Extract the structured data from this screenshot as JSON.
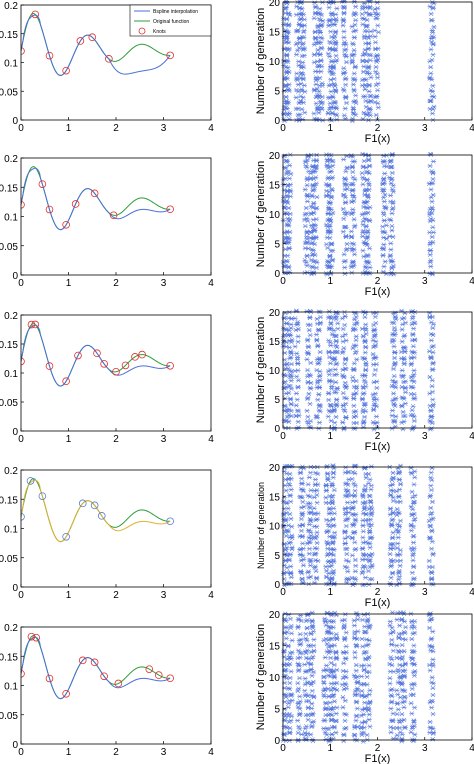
{
  "legend": {
    "entries": [
      {
        "label": "Bspline interpolation",
        "color": "#4a6fd8",
        "kind": "line"
      },
      {
        "label": "Original function",
        "color": "#2e9e3a",
        "kind": "line"
      },
      {
        "label": "Knots",
        "color": "#e03030",
        "kind": "circle"
      }
    ]
  },
  "colors": {
    "bspline": "#4a6fd8",
    "original": "#2e9e3a",
    "knot_red": "#e03030",
    "knot_blue": "#5a7fd0",
    "bspline_row4": "#e0b030",
    "generation_marker": "#5577dd"
  },
  "chart_data": [
    {
      "type": "line",
      "panel": "interp-1",
      "xlim": [
        0,
        4
      ],
      "ylim": [
        0,
        0.2
      ],
      "xticks": [
        "0",
        "1",
        "2",
        "3",
        "4"
      ],
      "yticks": [
        "0",
        "0.05",
        "0.1",
        "0.15",
        "0.2"
      ],
      "knots_x": [
        0,
        0.3,
        0.6,
        0.95,
        1.25,
        1.5,
        1.85,
        3.14
      ],
      "fit_tail_y": 0.103,
      "legend": true
    },
    {
      "type": "scatter",
      "panel": "gen-1",
      "xlabel": "F1(x)",
      "ylabel": "Number of generation",
      "xlim": [
        0,
        4
      ],
      "ylim": [
        0,
        20
      ],
      "xticks": [
        "0",
        "1",
        "2",
        "3",
        "4"
      ],
      "yticks": [
        "0",
        "5",
        "10",
        "15",
        "20"
      ],
      "columns_x": [
        0.05,
        0.1,
        0.32,
        0.42,
        0.7,
        0.8,
        1.0,
        1.1,
        1.3,
        1.5,
        1.72,
        1.82,
        1.98,
        3.15
      ]
    },
    {
      "type": "line",
      "panel": "interp-2",
      "xlim": [
        0,
        4
      ],
      "ylim": [
        0,
        0.2
      ],
      "xticks": [
        "0",
        "1",
        "2",
        "3",
        "4"
      ],
      "yticks": [
        "0",
        "0.05",
        "0.1",
        "0.15",
        "0.2"
      ],
      "knots_x": [
        0,
        0.45,
        0.6,
        0.95,
        1.15,
        1.55,
        1.95,
        3.14
      ],
      "fit_tail_y": 0.12
    },
    {
      "type": "scatter",
      "panel": "gen-2",
      "xlabel": "F1(x)",
      "ylabel": "Number of generation",
      "xlim": [
        0,
        4
      ],
      "ylim": [
        0,
        20
      ],
      "xticks": [
        "0",
        "1",
        "2",
        "3",
        "4"
      ],
      "yticks": [
        "0",
        "5",
        "10",
        "15",
        "20"
      ],
      "columns_x": [
        0.05,
        0.12,
        0.5,
        0.62,
        0.68,
        0.95,
        1.02,
        1.32,
        1.48,
        1.72,
        1.8,
        2.15,
        2.3,
        3.14
      ]
    },
    {
      "type": "line",
      "panel": "interp-3",
      "xlim": [
        0,
        4
      ],
      "ylim": [
        0,
        0.2
      ],
      "xticks": [
        "0",
        "1",
        "2",
        "3",
        "4"
      ],
      "yticks": [
        "0",
        "0.05",
        "0.1",
        "0.15",
        "0.2"
      ],
      "knots_x": [
        0,
        0.22,
        0.3,
        0.6,
        0.95,
        1.2,
        1.6,
        1.75,
        2.0,
        2.2,
        2.4,
        2.55,
        3.14
      ],
      "fit_tail_y": 0.12
    },
    {
      "type": "scatter",
      "panel": "gen-3",
      "xlabel": "F1(x)",
      "ylabel": "Number of generation",
      "xlim": [
        0,
        4
      ],
      "ylim": [
        0,
        20
      ],
      "xticks": [
        "0",
        "1",
        "2",
        "3",
        "4"
      ],
      "yticks": [
        "0",
        "5",
        "10",
        "15",
        "20"
      ],
      "columns_x": [
        0.05,
        0.15,
        0.3,
        0.55,
        0.75,
        1.0,
        1.12,
        1.3,
        1.52,
        1.72,
        1.95,
        2.35,
        2.55,
        2.75,
        3.14
      ]
    },
    {
      "type": "line",
      "panel": "interp-4",
      "xlim": [
        0,
        4
      ],
      "ylim": [
        0,
        0.2
      ],
      "xticks": [
        "0",
        "1",
        "2",
        "3",
        "4"
      ],
      "yticks": [
        "0",
        "0.05",
        "0.1",
        "0.15",
        "0.2"
      ],
      "knots_x": [
        0,
        0.2,
        0.45,
        0.95,
        1.3,
        1.55,
        1.7,
        3.14
      ],
      "fit_tail_y": 0.12
    },
    {
      "type": "scatter",
      "panel": "gen-4",
      "xlabel": "F1(x)",
      "ylabel": "Number of generation",
      "xlim": [
        0,
        4
      ],
      "ylim": [
        0,
        20
      ],
      "xticks": [
        "0",
        "1",
        "2",
        "3",
        "4"
      ],
      "yticks": [
        "0",
        "5",
        "10",
        "15",
        "20"
      ],
      "columns_x": [
        0.05,
        0.15,
        0.4,
        0.55,
        0.7,
        0.95,
        1.05,
        1.35,
        1.5,
        1.72,
        1.85,
        2.3,
        2.45,
        2.75,
        3.14
      ]
    },
    {
      "type": "line",
      "panel": "interp-5",
      "xlim": [
        0,
        4
      ],
      "ylim": [
        0,
        0.2
      ],
      "xticks": [
        "0",
        "1",
        "2",
        "3",
        "4"
      ],
      "yticks": [
        "0",
        "0.05",
        "0.1",
        "0.15",
        "0.2"
      ],
      "knots_x": [
        0,
        0.22,
        0.32,
        0.6,
        0.95,
        1.3,
        1.55,
        1.75,
        2.05,
        2.7,
        2.9,
        3.14
      ],
      "fit_tail_y": 0.12
    },
    {
      "type": "scatter",
      "panel": "gen-5",
      "xlabel": "F1(x)",
      "ylabel": "Number of generation",
      "xlim": [
        0,
        4
      ],
      "ylim": [
        0,
        20
      ],
      "xticks": [
        "0",
        "1",
        "2",
        "3",
        "4"
      ],
      "yticks": [
        "0",
        "5",
        "10",
        "15",
        "20"
      ],
      "columns_x": [
        0.05,
        0.15,
        0.35,
        0.5,
        0.62,
        0.9,
        1.0,
        1.1,
        1.3,
        1.55,
        1.7,
        1.8,
        2.3,
        2.45,
        2.55,
        2.75,
        3.14
      ]
    }
  ]
}
